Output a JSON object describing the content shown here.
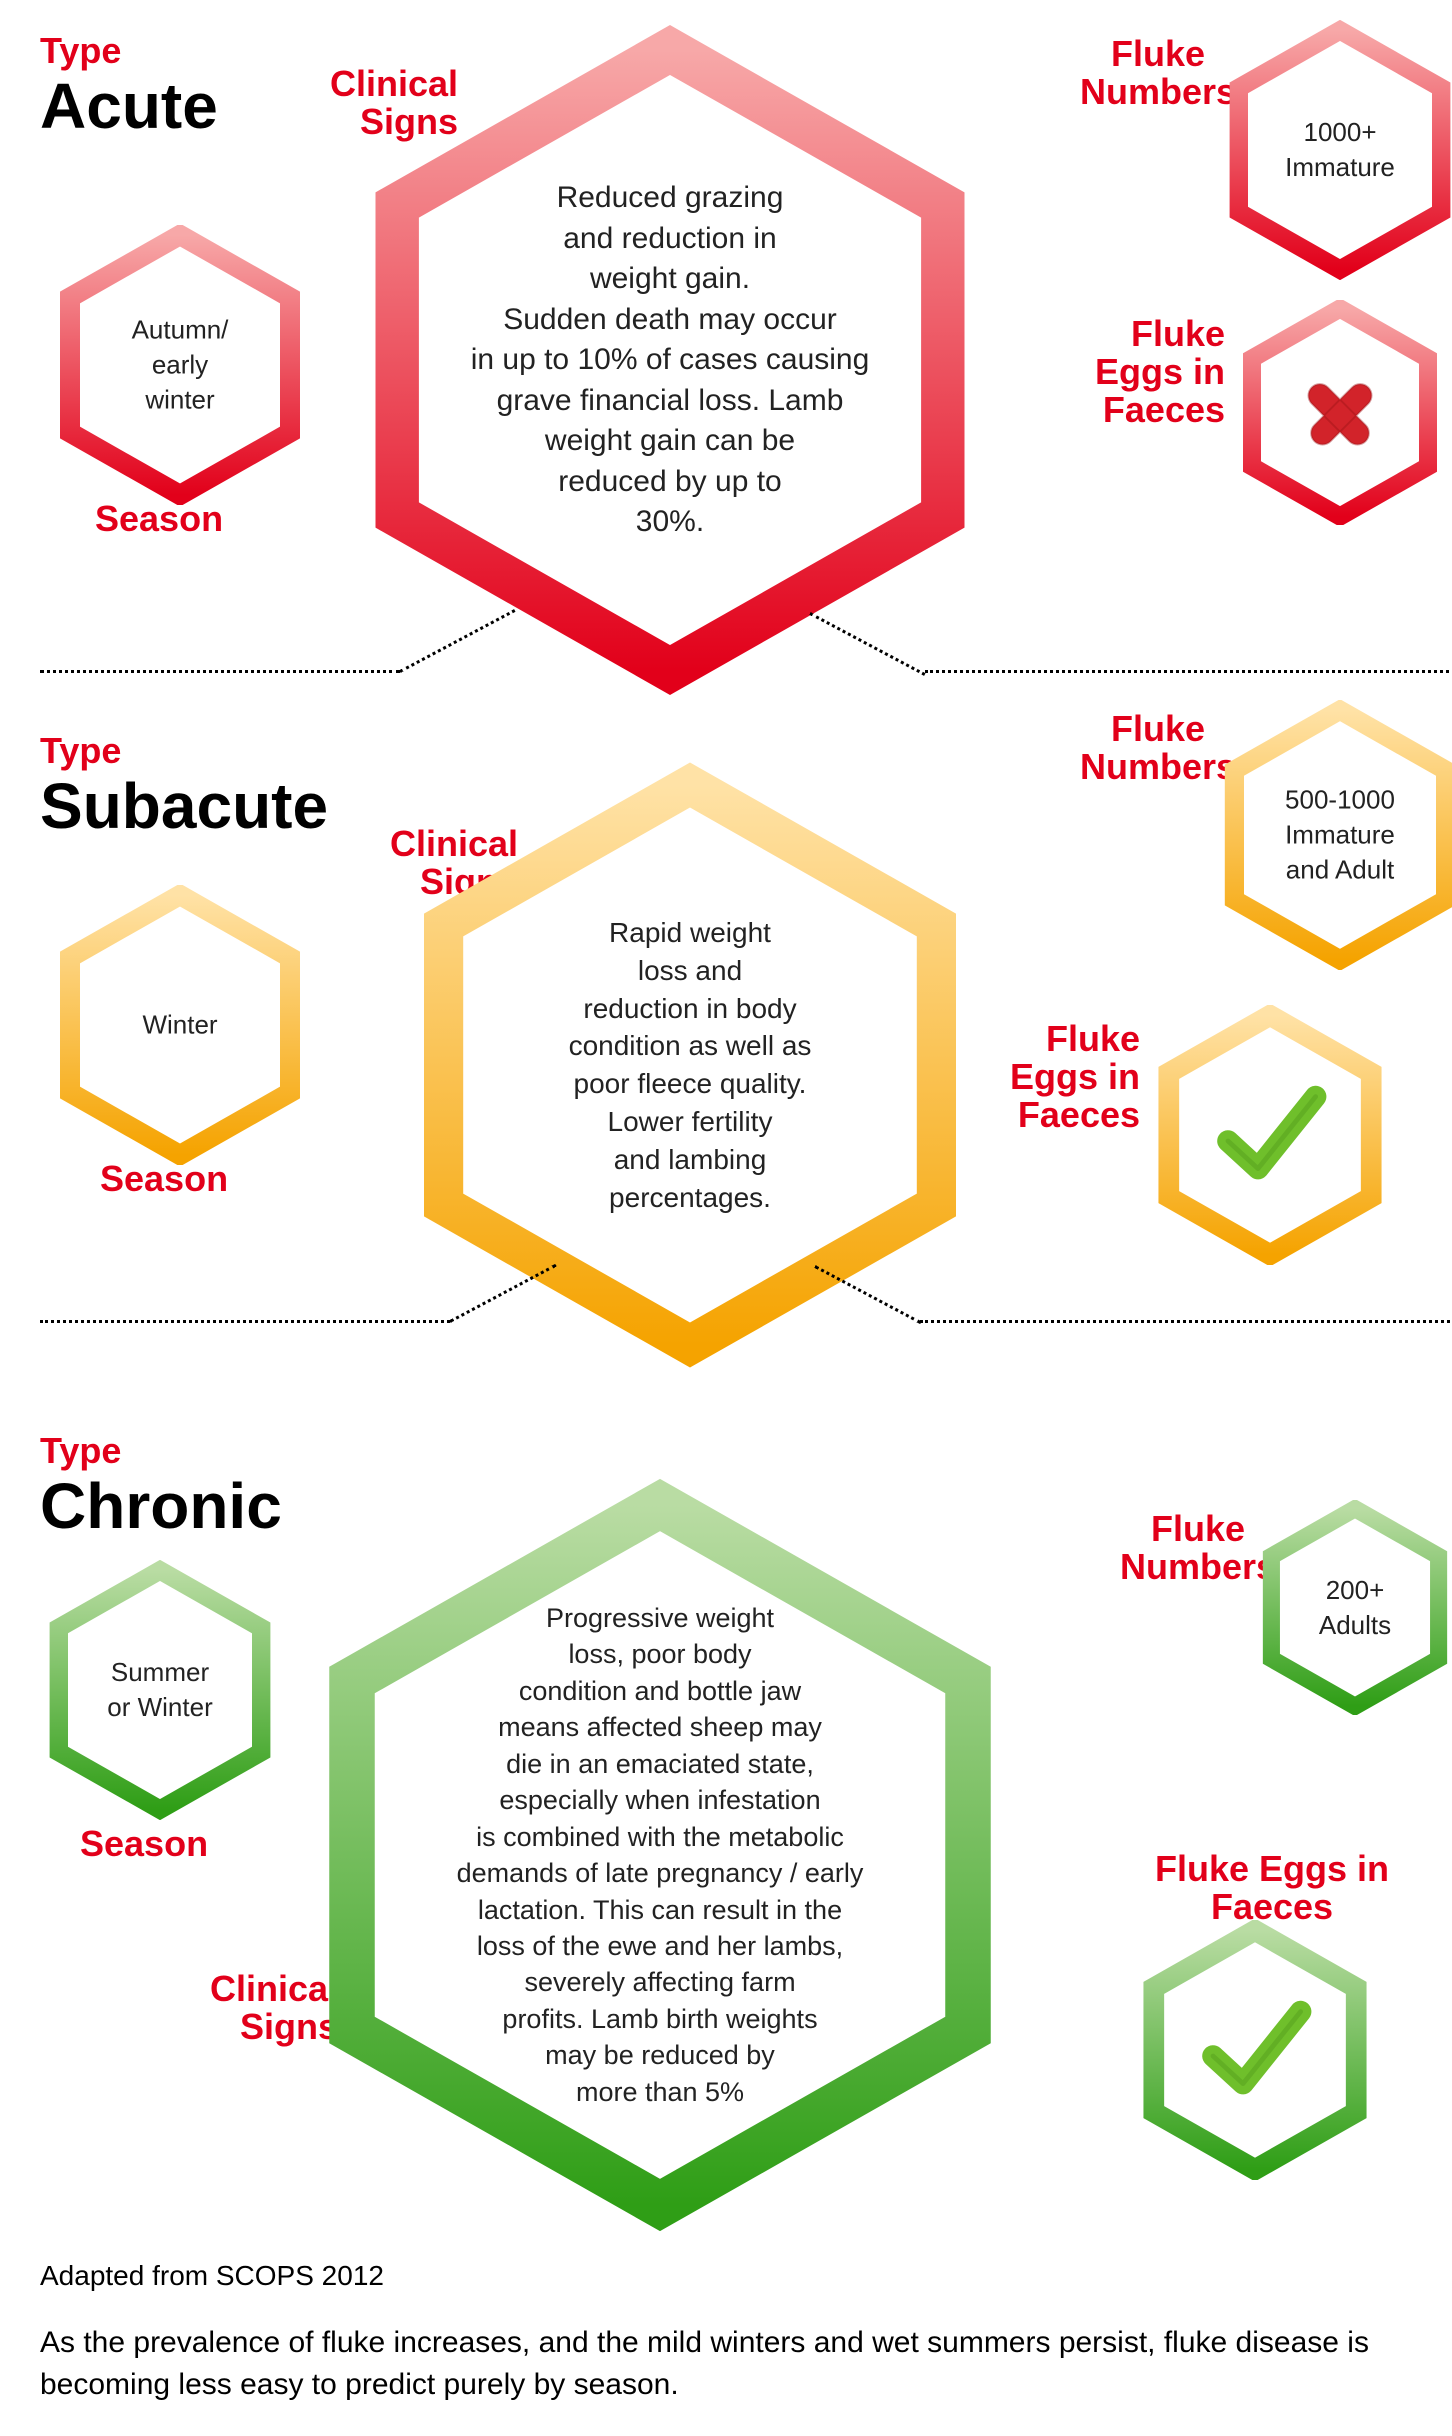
{
  "labels": {
    "type": "Type",
    "season": "Season",
    "clinical_signs": "Clinical\nSigns",
    "fluke_numbers": "Fluke\nNumbers",
    "fluke_eggs": "Fluke\nEggs in\nFaeces",
    "fluke_eggs_inline": "Fluke Eggs in\nFaeces"
  },
  "sections": {
    "acute": {
      "name": "Acute",
      "season": "Autumn/\nearly\nwinter",
      "clinical": "Reduced grazing\nand reduction in\nweight gain.\nSudden death may occur\nin up to 10% of cases causing\ngrave financial loss. Lamb\nweight gain can be\nreduced by up to\n30%.",
      "fluke_numbers": "1000+\nImmature",
      "eggs": false,
      "color_outer": "#e2001a",
      "color_inner_stop": "#f08080",
      "color_light": "#f7a8a8"
    },
    "subacute": {
      "name": "Subacute",
      "season": "Winter",
      "clinical": "Rapid weight\nloss and\nreduction in body\ncondition as well as\npoor fleece quality.\nLower fertility\nand lambing\npercentages.",
      "fluke_numbers": "500-1000\nImmature\nand Adult",
      "eggs": true,
      "color_outer": "#f5a300",
      "color_inner_stop": "#ffcf6b",
      "color_light": "#ffe2a6"
    },
    "chronic": {
      "name": "Chronic",
      "season": "Summer\nor Winter",
      "clinical": "Progressive weight\nloss, poor body\ncondition and bottle jaw\nmeans affected sheep may\ndie in an emaciated state,\nespecially when infestation\nis combined with the metabolic\ndemands of late pregnancy / early\nlactation. This can result in the\nloss of the ewe and her lambs,\nseverely affecting farm\nprofits. Lamb birth weights\nmay be reduced by\nmore than 5%",
      "fluke_numbers": "200+\nAdults",
      "eggs": true,
      "color_outer": "#2f9e16",
      "color_inner_stop": "#8fcf6e",
      "color_light": "#b9dca3"
    }
  },
  "footer": {
    "source": "Adapted from SCOPS 2012",
    "note": "As the prevalence of fluke increases, and the mild winters and wet summers persist, fluke disease is becoming less easy to predict purely by season."
  },
  "style": {
    "red": "#e2001a",
    "check_color": "#6fbf2b",
    "cross_color": "#d2232a",
    "bg": "#ffffff",
    "hex_stroke_width_small": 14,
    "hex_stroke_width_big": 28,
    "font_body_pt": 22
  }
}
